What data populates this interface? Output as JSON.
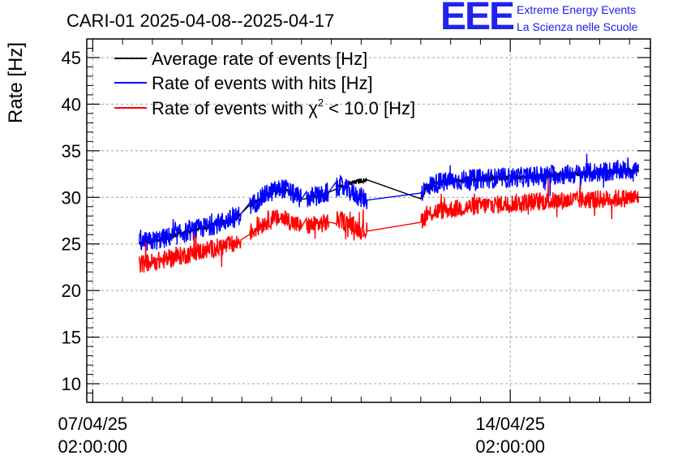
{
  "logo": {
    "mark": "EEE",
    "line1": "Extreme Energy Events",
    "line2": "La Scienza nelle Scuole",
    "color": "#2222ee"
  },
  "chart_data": {
    "type": "line",
    "title": "CARI-01 2025-04-08--2025-04-17",
    "ylabel": "Rate [Hz]",
    "xlabel": "",
    "ylim": [
      8,
      47
    ],
    "yticks": [
      10,
      15,
      20,
      25,
      30,
      35,
      40,
      45
    ],
    "ytick_labels": [
      "10",
      "15",
      "20",
      "25",
      "30",
      "35",
      "40",
      "45"
    ],
    "xlim_days": [
      -0.1,
      9.35
    ],
    "xticks": [
      {
        "day": 0,
        "date": "07/04/25",
        "time": "02:00:00"
      },
      {
        "day": 7,
        "date": "14/04/25",
        "time": "02:00:00"
      }
    ],
    "grid": true,
    "legend_position": "top-left",
    "legend": {
      "avg": "Average rate of events [Hz]",
      "hits": "Rate of events with hits [Hz]",
      "chi_prefix": "Rate of events with ",
      "chi_symbol": "χ",
      "chi_exp": "2",
      "chi_suffix": " < 10.0 [Hz]"
    },
    "series": [
      {
        "key": "avg",
        "name": "Average rate of events [Hz]",
        "color": "#000000",
        "x": [
          0.78,
          1.2,
          1.6,
          2.0,
          2.4,
          2.63,
          2.95,
          3.2,
          3.5,
          3.85,
          4.15,
          4.5,
          4.9,
          5.3,
          5.5,
          5.62,
          5.75,
          6.1,
          6.5,
          6.9,
          7.3,
          7.7,
          8.1,
          8.5,
          8.9,
          9.15
        ],
        "y": [
          25.0,
          25.6,
          26.3,
          27.0,
          27.8,
          29.0,
          30.5,
          31.0,
          29.8,
          30.2,
          31.2,
          31.8,
          32.1,
          31.1,
          30.0,
          31.2,
          31.5,
          31.8,
          32.0,
          32.1,
          32.2,
          32.4,
          32.5,
          32.7,
          32.9,
          33.0
        ],
        "noise": 0.25
      },
      {
        "key": "hits",
        "name": "Rate of events with hits [Hz]",
        "color": "#0000ff",
        "x": [
          0.78,
          1.2,
          1.6,
          2.0,
          2.4,
          2.63,
          2.95,
          3.2,
          3.5,
          3.85,
          4.15,
          4.5,
          4.9,
          5.3,
          5.5,
          5.62,
          5.75,
          6.1,
          6.5,
          6.9,
          7.3,
          7.7,
          8.1,
          8.5,
          8.9,
          9.15
        ],
        "y": [
          25.0,
          25.6,
          26.3,
          27.0,
          27.8,
          29.0,
          30.5,
          31.0,
          29.8,
          30.2,
          31.2,
          30.0,
          28.8,
          27.8,
          30.5,
          31.2,
          31.5,
          31.8,
          32.0,
          32.1,
          32.2,
          32.4,
          32.5,
          32.7,
          32.9,
          33.0
        ],
        "noise": 1.1
      },
      {
        "key": "chi",
        "name": "Rate of events with χ2 < 10.0 [Hz]",
        "color": "#ff0000",
        "x": [
          0.78,
          1.2,
          1.6,
          2.0,
          2.4,
          2.63,
          2.95,
          3.2,
          3.5,
          3.85,
          4.15,
          4.5,
          4.9,
          5.3,
          5.5,
          5.62,
          5.75,
          6.1,
          6.5,
          6.9,
          7.3,
          7.7,
          8.1,
          8.5,
          8.9,
          9.15
        ],
        "y": [
          22.8,
          23.3,
          23.9,
          24.5,
          25.0,
          26.2,
          27.6,
          27.8,
          26.8,
          27.2,
          27.6,
          26.5,
          26.0,
          25.8,
          27.5,
          28.2,
          28.5,
          28.8,
          29.1,
          29.3,
          29.5,
          29.6,
          29.7,
          29.8,
          29.9,
          30.0
        ],
        "noise": 1.0
      }
    ],
    "gaps_days": [
      [
        4.6,
        5.5
      ],
      [
        2.48,
        2.63
      ],
      [
        3.5,
        3.58
      ],
      [
        3.95,
        4.08
      ]
    ]
  }
}
